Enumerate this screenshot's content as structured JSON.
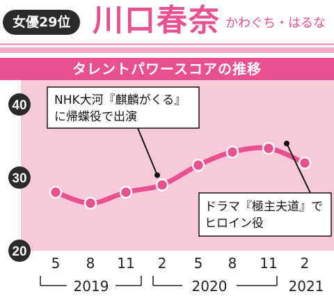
{
  "header": {
    "rank": "女優29位",
    "name": "川口春奈",
    "reading": "かわぐち・はるな"
  },
  "chart_title": "タレントパワースコアの推移",
  "colors": {
    "accent": "#e8508f",
    "plot_band": "#f8c9db",
    "stripe": "#f4a8c6",
    "badge": "#2a2a2a"
  },
  "chart_data": {
    "type": "line",
    "title": "タレントパワースコアの推移",
    "x": [
      "2019-05",
      "2019-08",
      "2019-11",
      "2020-02",
      "2020-05",
      "2020-08",
      "2020-11",
      "2021-02"
    ],
    "tick_labels": [
      "5",
      "8",
      "11",
      "2",
      "5",
      "8",
      "11",
      "2"
    ],
    "year_labels": [
      "2019",
      "2020",
      "2021"
    ],
    "series": [
      {
        "values": [
          28,
          26.5,
          28,
          29,
          31.7,
          33.5,
          34,
          32
        ]
      }
    ],
    "ylim": [
      20,
      40
    ],
    "yticks": [
      20,
      30,
      40
    ],
    "grid": false,
    "annotations": [
      {
        "lines": [
          "NHK大河『麒麟がくる』",
          "に帰蝶役で出演"
        ],
        "point": "2020-02"
      },
      {
        "lines": [
          "ドラマ『極主夫道』で",
          "ヒロイン役"
        ],
        "point": "2020-11"
      }
    ]
  }
}
